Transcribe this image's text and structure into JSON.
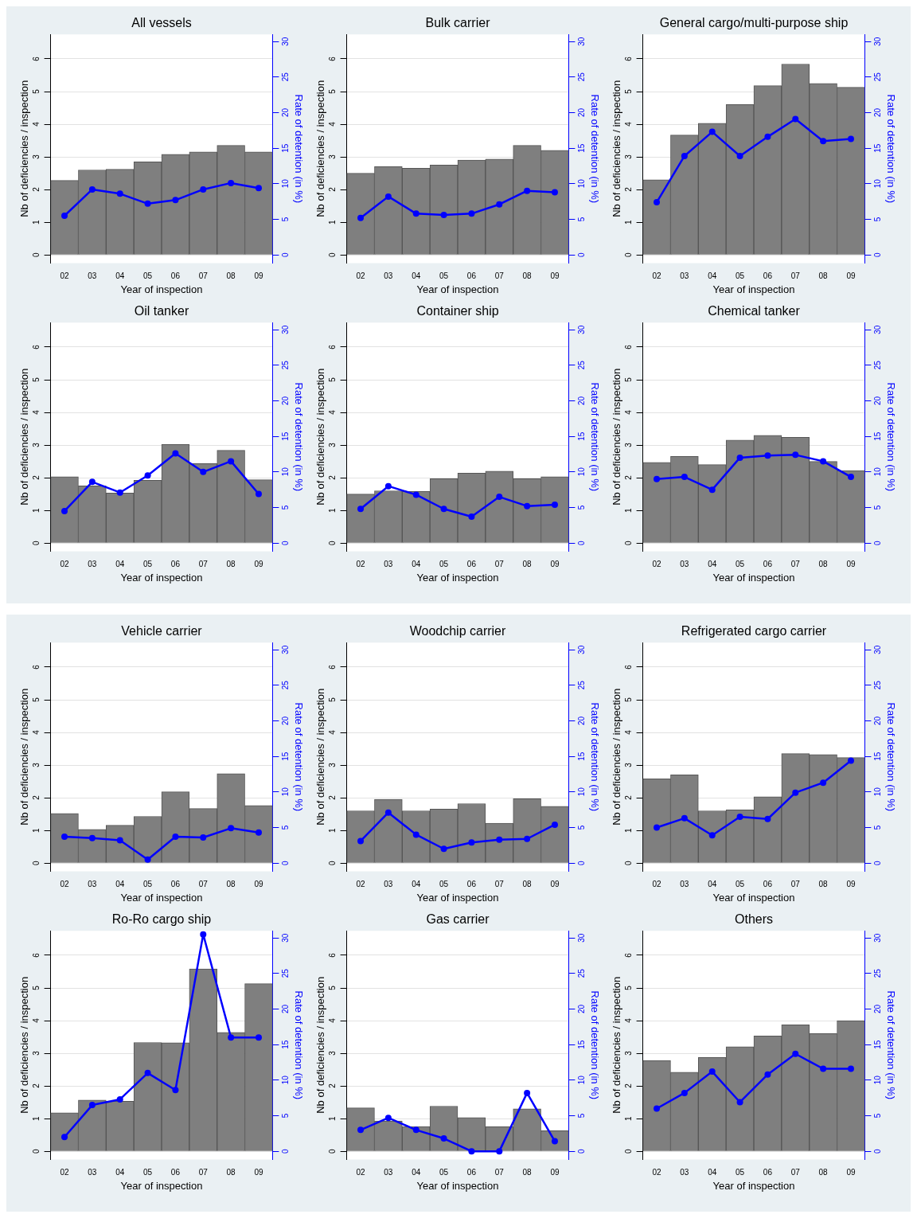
{
  "chart_data": [
    {
      "type": "bar",
      "title": "All vessels",
      "xlabel": "Year of inspection",
      "ylabel": "Nb of deficiencies / inspection",
      "y2label": "Rate of detention (in %)",
      "categories": [
        "02",
        "03",
        "04",
        "05",
        "06",
        "07",
        "08",
        "09"
      ],
      "series": [
        {
          "type": "bar",
          "color": "#7f7f7f",
          "values": [
            2.28,
            2.6,
            2.62,
            2.85,
            3.08,
            3.15,
            3.35,
            3.15
          ]
        },
        {
          "type": "line",
          "axis": "y2",
          "color": "#0000ff",
          "values": [
            5.5,
            9.2,
            8.6,
            7.2,
            7.7,
            9.2,
            10.1,
            9.4
          ]
        }
      ],
      "ylim": [
        -0.25,
        6.75
      ],
      "yticks": [
        0,
        1,
        2,
        3,
        4,
        5,
        6
      ],
      "y2lim": [
        -1.15,
        31
      ],
      "y2ticks": [
        0,
        5,
        10,
        15,
        20,
        25,
        30
      ],
      "grid": "y",
      "marker": "circle"
    },
    {
      "type": "bar",
      "title": "Bulk carrier",
      "xlabel": "Year of inspection",
      "ylabel": "Nb of deficiencies / inspection",
      "y2label": "Rate of detention (in %)",
      "categories": [
        "02",
        "03",
        "04",
        "05",
        "06",
        "07",
        "08",
        "09"
      ],
      "series": [
        {
          "type": "bar",
          "color": "#7f7f7f",
          "values": [
            2.5,
            2.7,
            2.65,
            2.75,
            2.9,
            2.93,
            3.35,
            3.2
          ]
        },
        {
          "type": "line",
          "axis": "y2",
          "color": "#0000ff",
          "values": [
            5.2,
            8.2,
            5.8,
            5.6,
            5.8,
            7.1,
            9.0,
            8.8
          ]
        }
      ],
      "ylim": [
        -0.25,
        6.75
      ],
      "yticks": [
        0,
        1,
        2,
        3,
        4,
        5,
        6
      ],
      "y2lim": [
        -1.15,
        31
      ],
      "y2ticks": [
        0,
        5,
        10,
        15,
        20,
        25,
        30
      ],
      "grid": "y",
      "marker": "circle"
    },
    {
      "type": "bar",
      "title": "General cargo/multi-purpose ship",
      "xlabel": "Year of inspection",
      "ylabel": "Nb of deficiencies / inspection",
      "y2label": "Rate of detention (in %)",
      "categories": [
        "02",
        "03",
        "04",
        "05",
        "06",
        "07",
        "08",
        "09"
      ],
      "series": [
        {
          "type": "bar",
          "color": "#7f7f7f",
          "values": [
            2.3,
            3.67,
            4.03,
            4.6,
            5.18,
            5.84,
            5.25,
            5.13
          ]
        },
        {
          "type": "line",
          "axis": "y2",
          "color": "#0000ff",
          "values": [
            7.4,
            13.9,
            17.3,
            13.9,
            16.6,
            19.1,
            16.0,
            16.3
          ]
        }
      ],
      "ylim": [
        -0.25,
        6.75
      ],
      "yticks": [
        0,
        1,
        2,
        3,
        4,
        5,
        6
      ],
      "y2lim": [
        -1.15,
        31
      ],
      "y2ticks": [
        0,
        5,
        10,
        15,
        20,
        25,
        30
      ],
      "grid": "y",
      "marker": "circle"
    },
    {
      "type": "bar",
      "title": "Oil tanker",
      "xlabel": "Year of inspection",
      "ylabel": "Nb of deficiencies / inspection",
      "y2label": "Rate of detention (in %)",
      "categories": [
        "02",
        "03",
        "04",
        "05",
        "06",
        "07",
        "08",
        "09"
      ],
      "series": [
        {
          "type": "bar",
          "color": "#7f7f7f",
          "values": [
            2.03,
            1.75,
            1.53,
            1.92,
            3.02,
            2.43,
            2.84,
            1.94
          ]
        },
        {
          "type": "line",
          "axis": "y2",
          "color": "#0000ff",
          "values": [
            4.5,
            8.6,
            7.1,
            9.5,
            12.6,
            10.0,
            11.5,
            6.9
          ]
        }
      ],
      "ylim": [
        -0.25,
        6.75
      ],
      "yticks": [
        0,
        1,
        2,
        3,
        4,
        5,
        6
      ],
      "y2lim": [
        -1.15,
        31
      ],
      "y2ticks": [
        0,
        5,
        10,
        15,
        20,
        25,
        30
      ],
      "grid": "y",
      "marker": "circle"
    },
    {
      "type": "bar",
      "title": "Container ship",
      "xlabel": "Year of inspection",
      "ylabel": "Nb of deficiencies / inspection",
      "y2label": "Rate of detention (in %)",
      "categories": [
        "02",
        "03",
        "04",
        "05",
        "06",
        "07",
        "08",
        "09"
      ],
      "series": [
        {
          "type": "bar",
          "color": "#7f7f7f",
          "values": [
            1.5,
            1.6,
            1.58,
            1.97,
            2.14,
            2.2,
            1.97,
            2.03
          ]
        },
        {
          "type": "line",
          "axis": "y2",
          "color": "#0000ff",
          "values": [
            4.8,
            8.0,
            6.8,
            4.8,
            3.7,
            6.5,
            5.2,
            5.4
          ]
        }
      ],
      "ylim": [
        -0.25,
        6.75
      ],
      "yticks": [
        0,
        1,
        2,
        3,
        4,
        5,
        6
      ],
      "y2lim": [
        -1.15,
        31
      ],
      "y2ticks": [
        0,
        5,
        10,
        15,
        20,
        25,
        30
      ],
      "grid": "y",
      "marker": "circle"
    },
    {
      "type": "bar",
      "title": "Chemical tanker",
      "xlabel": "Year of inspection",
      "ylabel": "Nb of deficiencies / inspection",
      "y2label": "Rate of detention (in %)",
      "categories": [
        "02",
        "03",
        "04",
        "05",
        "06",
        "07",
        "08",
        "09"
      ],
      "series": [
        {
          "type": "bar",
          "color": "#7f7f7f",
          "values": [
            2.47,
            2.65,
            2.4,
            3.15,
            3.3,
            3.24,
            2.5,
            2.22
          ]
        },
        {
          "type": "line",
          "axis": "y2",
          "color": "#0000ff",
          "values": [
            9.0,
            9.3,
            7.5,
            12.0,
            12.3,
            12.4,
            11.5,
            9.3
          ]
        }
      ],
      "ylim": [
        -0.25,
        6.75
      ],
      "yticks": [
        0,
        1,
        2,
        3,
        4,
        5,
        6
      ],
      "y2lim": [
        -1.15,
        31
      ],
      "y2ticks": [
        0,
        5,
        10,
        15,
        20,
        25,
        30
      ],
      "grid": "y",
      "marker": "circle"
    },
    {
      "type": "bar",
      "title": "Vehicle carrier",
      "xlabel": "Year of inspection",
      "ylabel": "Nb of deficiencies / inspection",
      "y2label": "Rate of detention (in %)",
      "categories": [
        "02",
        "03",
        "04",
        "05",
        "06",
        "07",
        "08",
        "09"
      ],
      "series": [
        {
          "type": "bar",
          "color": "#7f7f7f",
          "values": [
            1.52,
            1.03,
            1.16,
            1.43,
            2.18,
            1.67,
            2.74,
            1.76
          ]
        },
        {
          "type": "line",
          "axis": "y2",
          "color": "#0000ff",
          "values": [
            3.7,
            3.5,
            3.2,
            0.5,
            3.7,
            3.6,
            4.9,
            4.3
          ]
        }
      ],
      "ylim": [
        -0.25,
        6.75
      ],
      "yticks": [
        0,
        1,
        2,
        3,
        4,
        5,
        6
      ],
      "y2lim": [
        -1.15,
        31
      ],
      "y2ticks": [
        0,
        5,
        10,
        15,
        20,
        25,
        30
      ],
      "grid": "y",
      "marker": "circle"
    },
    {
      "type": "bar",
      "title": "Woodchip carrier",
      "xlabel": "Year of inspection",
      "ylabel": "Nb of deficiencies / inspection",
      "y2label": "Rate of detention (in %)",
      "categories": [
        "02",
        "03",
        "04",
        "05",
        "06",
        "07",
        "08",
        "09"
      ],
      "series": [
        {
          "type": "bar",
          "color": "#7f7f7f",
          "values": [
            1.6,
            1.95,
            1.6,
            1.65,
            1.82,
            1.22,
            1.97,
            1.74
          ]
        },
        {
          "type": "line",
          "axis": "y2",
          "color": "#0000ff",
          "values": [
            3.1,
            7.1,
            4.0,
            2.0,
            2.9,
            3.3,
            3.4,
            5.4
          ]
        }
      ],
      "ylim": [
        -0.25,
        6.75
      ],
      "yticks": [
        0,
        1,
        2,
        3,
        4,
        5,
        6
      ],
      "y2lim": [
        -1.15,
        31
      ],
      "y2ticks": [
        0,
        5,
        10,
        15,
        20,
        25,
        30
      ],
      "grid": "y",
      "marker": "circle"
    },
    {
      "type": "bar",
      "title": "Refrigerated cargo carrier",
      "xlabel": "Year of inspection",
      "ylabel": "Nb of deficiencies / inspection",
      "y2label": "Rate of detention (in %)",
      "categories": [
        "02",
        "03",
        "04",
        "05",
        "06",
        "07",
        "08",
        "09"
      ],
      "series": [
        {
          "type": "bar",
          "color": "#7f7f7f",
          "values": [
            2.58,
            2.7,
            1.6,
            1.63,
            2.03,
            3.35,
            3.32,
            3.23
          ]
        },
        {
          "type": "line",
          "axis": "y2",
          "color": "#0000ff",
          "values": [
            5.0,
            6.3,
            3.9,
            6.5,
            6.2,
            9.9,
            11.3,
            14.4
          ]
        }
      ],
      "ylim": [
        -0.25,
        6.75
      ],
      "yticks": [
        0,
        1,
        2,
        3,
        4,
        5,
        6
      ],
      "y2lim": [
        -1.15,
        31
      ],
      "y2ticks": [
        0,
        5,
        10,
        15,
        20,
        25,
        30
      ],
      "grid": "y",
      "marker": "circle"
    },
    {
      "type": "bar",
      "title": "Ro-Ro cargo ship",
      "xlabel": "Year of inspection",
      "ylabel": "Nb of deficiencies / inspection",
      "y2label": "Rate of detention (in %)",
      "categories": [
        "02",
        "03",
        "04",
        "05",
        "06",
        "07",
        "08",
        "09"
      ],
      "series": [
        {
          "type": "bar",
          "color": "#7f7f7f",
          "values": [
            1.18,
            1.57,
            1.53,
            3.33,
            3.32,
            5.58,
            3.64,
            5.13
          ]
        },
        {
          "type": "line",
          "axis": "y2",
          "color": "#0000ff",
          "values": [
            2.0,
            6.5,
            7.3,
            11.0,
            8.6,
            30.5,
            16.0,
            16.0
          ]
        }
      ],
      "ylim": [
        -0.25,
        6.75
      ],
      "yticks": [
        0,
        1,
        2,
        3,
        4,
        5,
        6
      ],
      "y2lim": [
        -1.15,
        31
      ],
      "y2ticks": [
        0,
        5,
        10,
        15,
        20,
        25,
        30
      ],
      "grid": "y",
      "marker": "circle"
    },
    {
      "type": "bar",
      "title": "Gas carrier",
      "xlabel": "Year of inspection",
      "ylabel": "Nb of deficiencies / inspection",
      "y2label": "Rate of detention (in %)",
      "categories": [
        "02",
        "03",
        "04",
        "05",
        "06",
        "07",
        "08",
        "09"
      ],
      "series": [
        {
          "type": "bar",
          "color": "#7f7f7f",
          "values": [
            1.33,
            0.93,
            0.76,
            1.38,
            1.03,
            0.75,
            1.3,
            0.63
          ]
        },
        {
          "type": "line",
          "axis": "y2",
          "color": "#0000ff",
          "values": [
            3.0,
            4.7,
            3.0,
            1.8,
            0,
            0,
            8.2,
            1.4
          ]
        }
      ],
      "ylim": [
        -0.25,
        6.75
      ],
      "yticks": [
        0,
        1,
        2,
        3,
        4,
        5,
        6
      ],
      "y2lim": [
        -1.15,
        31
      ],
      "y2ticks": [
        0,
        5,
        10,
        15,
        20,
        25,
        30
      ],
      "grid": "y",
      "marker": "circle"
    },
    {
      "type": "bar",
      "title": "Others",
      "xlabel": "Year of inspection",
      "ylabel": "Nb of deficiencies / inspection",
      "y2label": "Rate of detention (in %)",
      "categories": [
        "02",
        "03",
        "04",
        "05",
        "06",
        "07",
        "08",
        "09"
      ],
      "series": [
        {
          "type": "bar",
          "color": "#7f7f7f",
          "values": [
            2.78,
            2.42,
            2.87,
            3.2,
            3.53,
            3.87,
            3.6,
            4.0
          ]
        },
        {
          "type": "line",
          "axis": "y2",
          "color": "#0000ff",
          "values": [
            6.0,
            8.2,
            11.2,
            6.9,
            10.8,
            13.7,
            11.6,
            11.6
          ]
        }
      ],
      "ylim": [
        -0.25,
        6.75
      ],
      "yticks": [
        0,
        1,
        2,
        3,
        4,
        5,
        6
      ],
      "y2lim": [
        -1.15,
        31
      ],
      "y2ticks": [
        0,
        5,
        10,
        15,
        20,
        25,
        30
      ],
      "grid": "y",
      "marker": "circle"
    }
  ]
}
